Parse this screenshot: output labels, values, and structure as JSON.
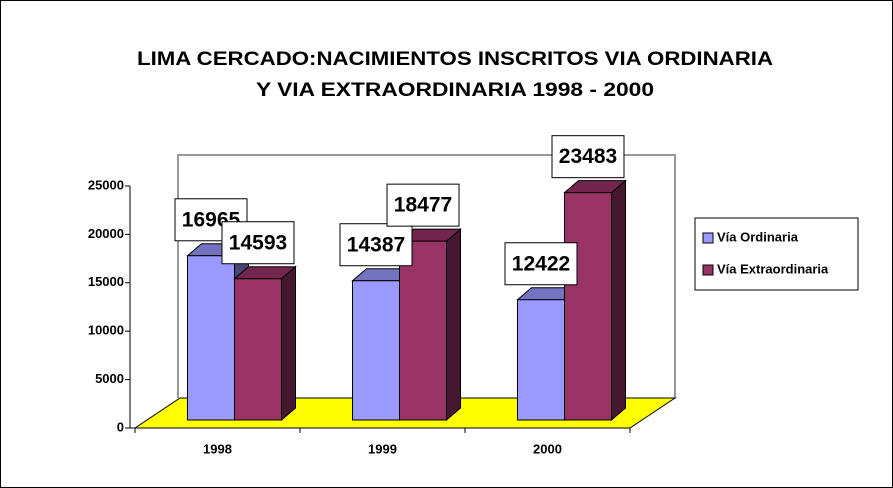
{
  "chart_data": {
    "type": "bar3d",
    "title": [
      "LIMA CERCADO:NACIMIENTOS INSCRITOS  VIA ORDINARIA",
      "Y VIA EXTRAORDINARIA 1998 - 2000"
    ],
    "categories": [
      "1998",
      "1999",
      "2000"
    ],
    "series": [
      {
        "name": "Vía Ordinaria",
        "color": "#9999ff",
        "values": [
          16965,
          14387,
          12422
        ]
      },
      {
        "name": "Vía Extraordinaria",
        "color": "#993366",
        "values": [
          14593,
          18477,
          23483
        ]
      }
    ],
    "ylim": [
      0,
      25000
    ],
    "yticks": [
      0,
      5000,
      10000,
      15000,
      20000,
      25000
    ],
    "floor_color": "#ffff00",
    "legend": "right"
  }
}
